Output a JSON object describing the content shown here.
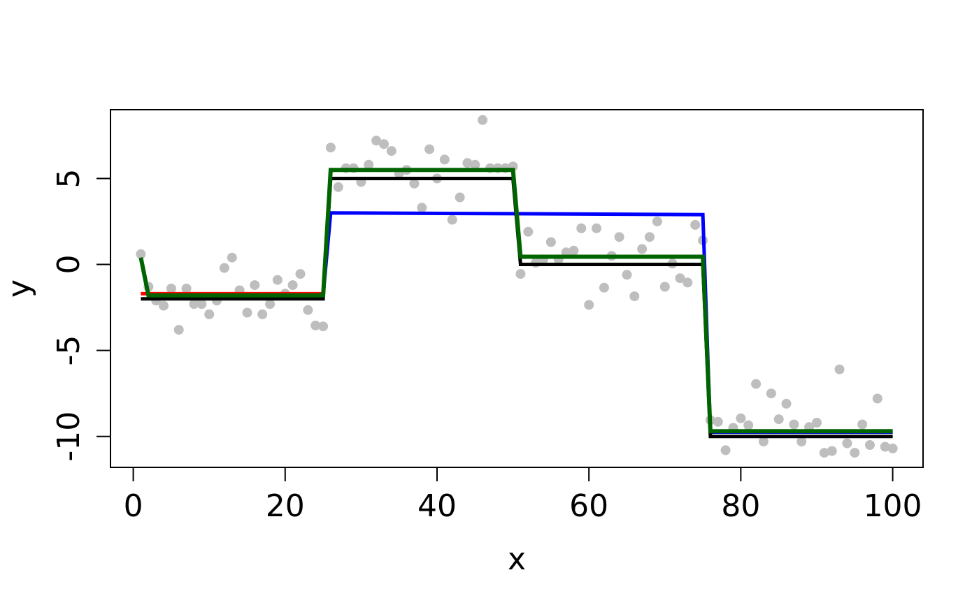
{
  "chart_data": {
    "type": "scatter",
    "title": "",
    "xlabel": "x",
    "ylabel": "y",
    "xlim": [
      -3,
      104
    ],
    "ylim": [
      -11.8,
      9.0
    ],
    "x_ticks": [
      0,
      20,
      40,
      60,
      80,
      100
    ],
    "x_tick_labels": [
      "0",
      "20",
      "40",
      "60",
      "80",
      "100"
    ],
    "y_ticks": [
      -10,
      -5,
      0,
      5
    ],
    "y_tick_labels": [
      "-10",
      "-5",
      "0",
      "5"
    ],
    "grid": false,
    "legend": false,
    "points": {
      "color": "#bebebe",
      "x": [
        1,
        2,
        3,
        4,
        5,
        6,
        7,
        8,
        9,
        10,
        11,
        12,
        13,
        14,
        15,
        16,
        17,
        18,
        19,
        20,
        21,
        22,
        23,
        24,
        25,
        26,
        27,
        28,
        29,
        30,
        31,
        32,
        33,
        34,
        35,
        36,
        37,
        38,
        39,
        40,
        41,
        42,
        43,
        44,
        45,
        46,
        47,
        48,
        49,
        50,
        51,
        52,
        53,
        54,
        55,
        56,
        57,
        58,
        59,
        60,
        61,
        62,
        63,
        64,
        65,
        66,
        67,
        68,
        69,
        70,
        71,
        72,
        73,
        74,
        75,
        76,
        77,
        78,
        79,
        80,
        81,
        82,
        83,
        84,
        85,
        86,
        87,
        88,
        89,
        90,
        91,
        92,
        93,
        94,
        95,
        96,
        97,
        98,
        99,
        100
      ],
      "y": [
        0.6,
        -1.3,
        -2.1,
        -2.4,
        -1.4,
        -3.8,
        -1.4,
        -2.3,
        -2.3,
        -2.9,
        -2.1,
        -0.2,
        0.4,
        -1.5,
        -2.8,
        -1.2,
        -2.9,
        -2.3,
        -0.9,
        -1.7,
        -1.2,
        -0.55,
        -2.65,
        -3.55,
        -3.6,
        6.8,
        4.5,
        5.6,
        5.6,
        4.8,
        5.8,
        7.2,
        7.0,
        6.6,
        5.3,
        5.5,
        4.7,
        3.3,
        6.7,
        5.0,
        6.1,
        2.6,
        3.9,
        5.9,
        5.8,
        8.4,
        5.6,
        5.6,
        5.6,
        5.7,
        -0.55,
        1.9,
        0.1,
        0.3,
        1.3,
        0.3,
        0.7,
        0.8,
        2.1,
        -2.35,
        2.1,
        -1.35,
        0.5,
        1.6,
        -0.6,
        -1.85,
        0.9,
        1.6,
        2.5,
        -1.3,
        0.05,
        -0.8,
        -1.05,
        2.3,
        1.4,
        -9.05,
        -9.15,
        -10.8,
        -9.5,
        -8.95,
        -9.35,
        -6.95,
        -10.3,
        -7.5,
        -9.0,
        -8.1,
        -9.3,
        -10.3,
        -9.45,
        -9.2,
        -10.95,
        -10.85,
        -6.1,
        -10.4,
        -10.95,
        -9.3,
        -10.5,
        -7.8,
        -10.6,
        -10.7
      ]
    },
    "series": [
      {
        "color": "#ff0000",
        "x": [
          1,
          25
        ],
        "y": [
          -1.7,
          -1.7
        ]
      },
      {
        "color": "#0000ff",
        "x": [
          2,
          25,
          26,
          50,
          75,
          76,
          100
        ],
        "y": [
          -1.8,
          -1.8,
          3.0,
          2.95,
          2.9,
          -9.75,
          -9.75
        ]
      },
      {
        "color": "#000000",
        "x": [
          1,
          25,
          25,
          26,
          50,
          50,
          51,
          75,
          75,
          76,
          100
        ],
        "y": [
          -2.0,
          -2.0,
          -2.0,
          5.0,
          5.0,
          5.0,
          0.0,
          0.0,
          0.0,
          -10.0,
          -10.0
        ]
      },
      {
        "color": "#006400",
        "x": [
          1,
          2,
          25,
          26,
          50,
          51,
          75,
          76,
          100
        ],
        "y": [
          0.4,
          -1.8,
          -1.8,
          5.5,
          5.5,
          0.45,
          0.45,
          -9.7,
          -9.7
        ]
      }
    ]
  }
}
